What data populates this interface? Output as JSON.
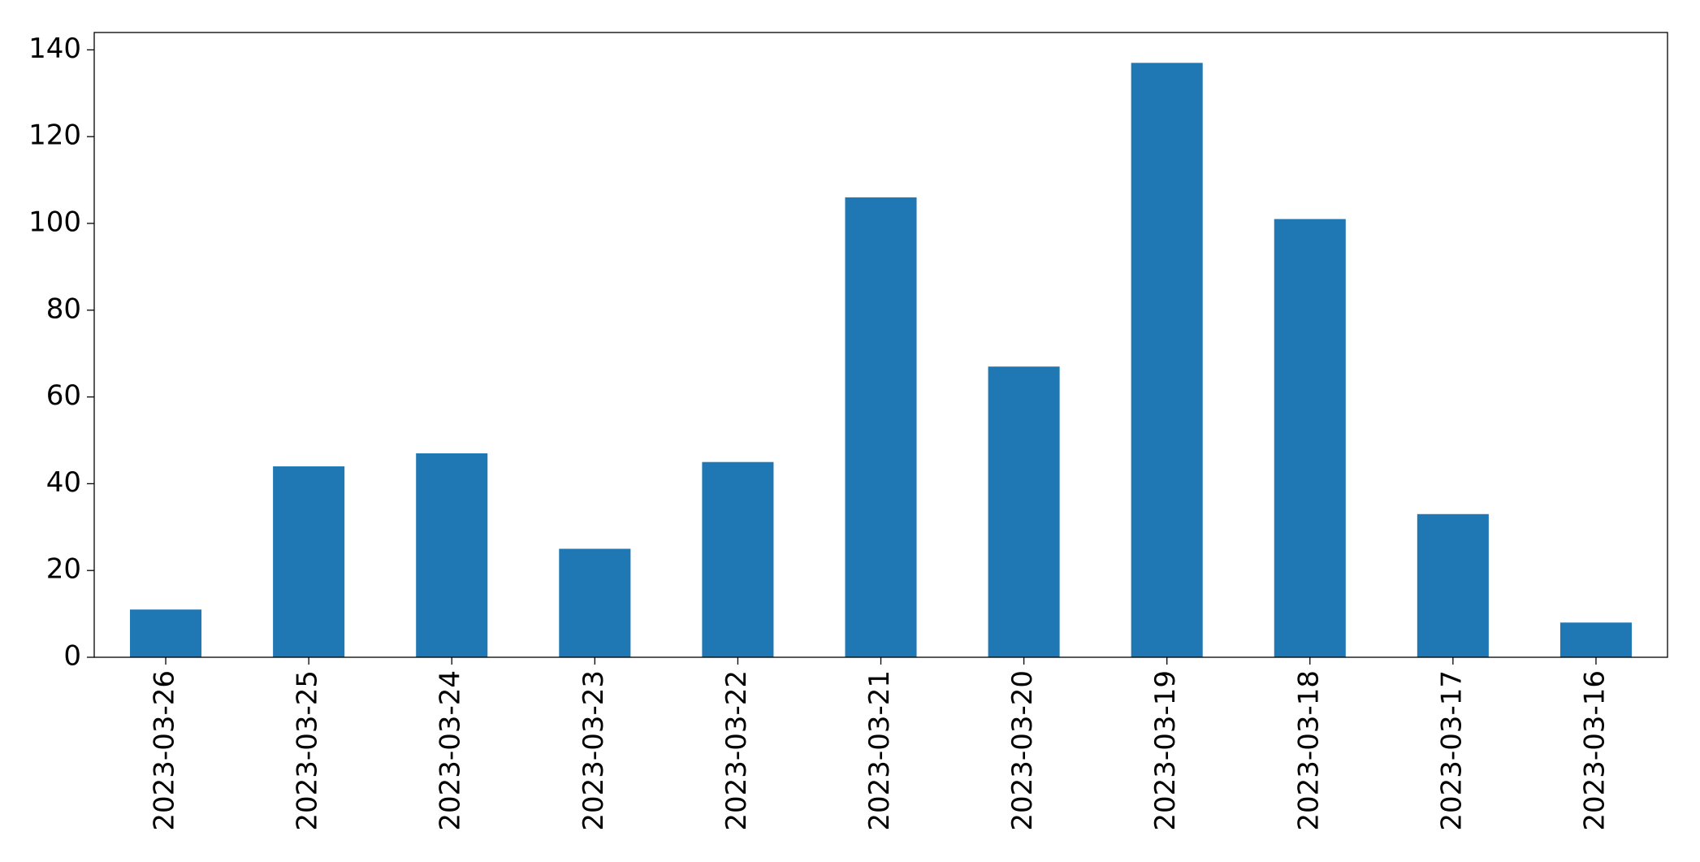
{
  "chart_data": {
    "type": "bar",
    "categories": [
      "2023-03-26",
      "2023-03-25",
      "2023-03-24",
      "2023-03-23",
      "2023-03-22",
      "2023-03-21",
      "2023-03-20",
      "2023-03-19",
      "2023-03-18",
      "2023-03-17",
      "2023-03-16"
    ],
    "values": [
      11,
      44,
      47,
      25,
      45,
      106,
      67,
      137,
      101,
      33,
      8
    ],
    "color": "#1f77b4",
    "ylim": [
      0,
      144
    ],
    "yticks": [
      0,
      20,
      40,
      60,
      80,
      100,
      120,
      140
    ],
    "grid": false
  }
}
